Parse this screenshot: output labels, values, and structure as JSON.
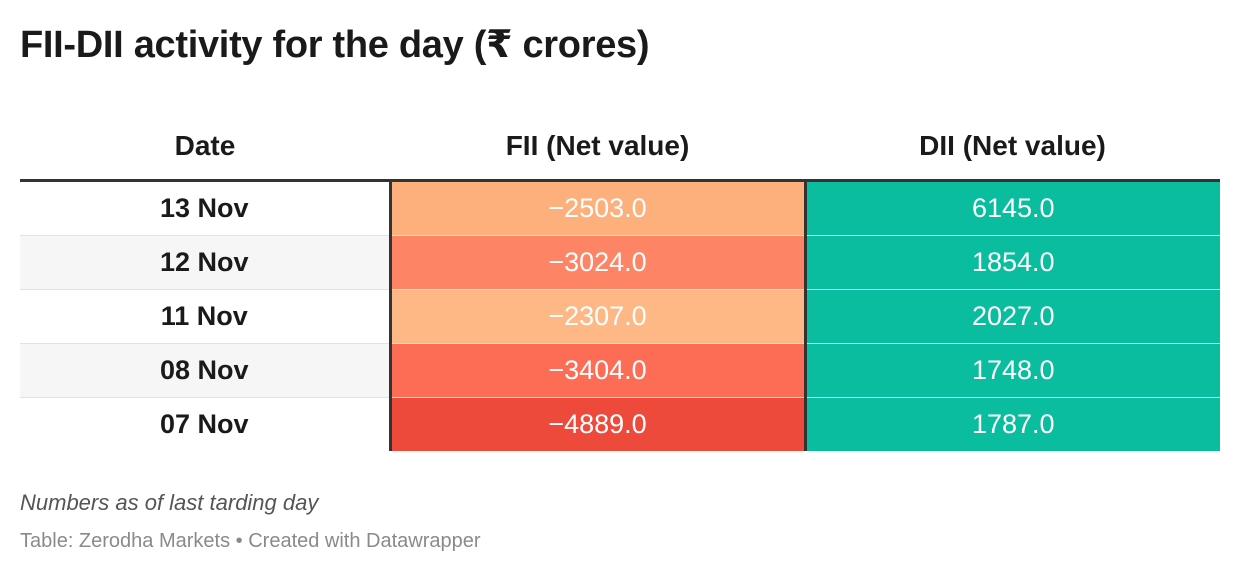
{
  "title": "FII-DII activity for the day (₹ crores)",
  "note": "Numbers as of last tarding day",
  "source_line": "Table: Zerodha Markets • Created with Datawrapper",
  "chart_data": {
    "type": "table",
    "title": "FII-DII activity for the day (₹ crores)",
    "columns": [
      "Date",
      "FII (Net value)",
      "DII (Net value)"
    ],
    "rows": [
      {
        "date": "13 Nov",
        "fii": "−2503.0",
        "dii": "6145.0",
        "fii_value": -2503.0,
        "dii_value": 6145.0,
        "fii_color": "#fdaf7c",
        "dii_color": "#0bbd9f"
      },
      {
        "date": "12 Nov",
        "fii": "−3024.0",
        "dii": "1854.0",
        "fii_value": -3024.0,
        "dii_value": 1854.0,
        "fii_color": "#fd8565",
        "dii_color": "#0bbd9f"
      },
      {
        "date": "11 Nov",
        "fii": "−2307.0",
        "dii": "2027.0",
        "fii_value": -2307.0,
        "dii_value": 2027.0,
        "fii_color": "#feb885",
        "dii_color": "#0bbd9f"
      },
      {
        "date": "08 Nov",
        "fii": "−3404.0",
        "dii": "1748.0",
        "fii_value": -3404.0,
        "dii_value": 1748.0,
        "fii_color": "#fd6d55",
        "dii_color": "#0bbd9f"
      },
      {
        "date": "07 Nov",
        "fii": "−4889.0",
        "dii": "1787.0",
        "fii_value": -4889.0,
        "dii_value": 1787.0,
        "fii_color": "#ed4a3b",
        "dii_color": "#0bbd9f"
      }
    ]
  }
}
